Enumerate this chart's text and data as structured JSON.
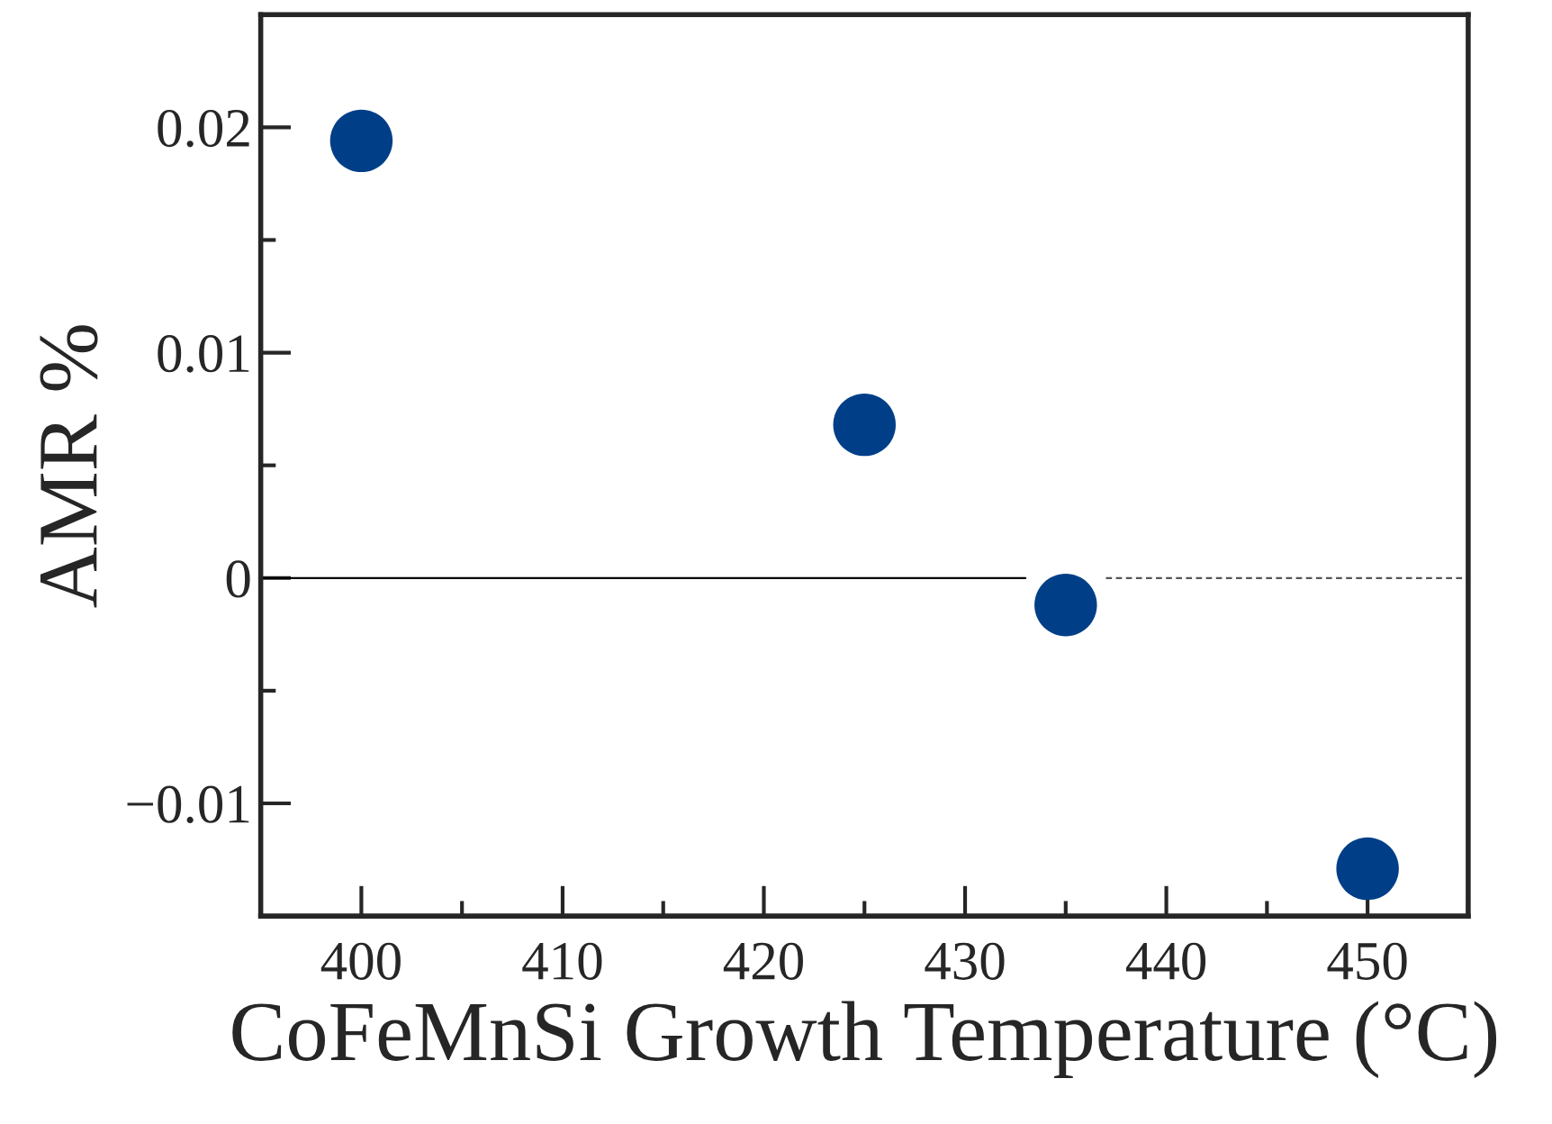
{
  "chart_data": {
    "type": "scatter",
    "xlabel": "CoFeMnSi Growth Temperature (°C)",
    "ylabel": "AMR %",
    "series": [
      {
        "color": "#003f87",
        "x": [
          400,
          425,
          435,
          450
        ],
        "values": [
          0.0194,
          0.0068,
          -0.0012,
          -0.0129
        ],
        "marker": "circle"
      },
      {
        "type": "line",
        "color": "#000000",
        "x": [
          395,
          433
        ],
        "values": [
          0,
          0
        ],
        "line_style": "solid"
      },
      {
        "type": "line",
        "color": "#555555",
        "x": [
          437,
          455
        ],
        "values": [
          0,
          0
        ],
        "line_style": "dashed"
      }
    ],
    "xlim": [
      395,
      455
    ],
    "xticks": [
      400,
      410,
      420,
      430,
      440,
      450
    ],
    "ylim": [
      -0.015,
      0.025
    ],
    "yticks": [
      {
        "value": -0.01,
        "label": "−0.01"
      },
      0,
      0.01,
      0.02
    ],
    "grid": false,
    "legend": false
  }
}
